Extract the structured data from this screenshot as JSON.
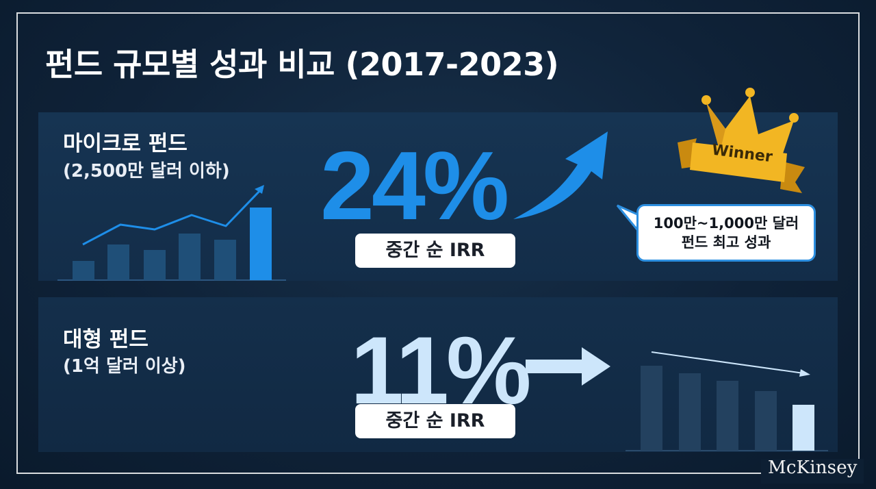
{
  "title": "펀드 규모별 성과 비교 (2017-2023)",
  "brand": "McKinsey",
  "micro": {
    "label": "마이크로 펀드",
    "sublabel": "(2,500만 달러 이하)",
    "value": "24%",
    "metric": "중간 순 IRR",
    "color": "#1e8ee8",
    "trend": "up"
  },
  "large": {
    "label": "대형 펀드",
    "sublabel": "(1억 달러 이상)",
    "value": "11%",
    "metric": "중간 순 IRR",
    "color": "#cde6fb",
    "trend": "flat-down"
  },
  "badge": {
    "text": "Winner",
    "icon": "crown-icon",
    "color": "#f2b623"
  },
  "callout": {
    "line1": "100만~1,000만 달러",
    "line2": "펀드 최고 성과"
  }
}
